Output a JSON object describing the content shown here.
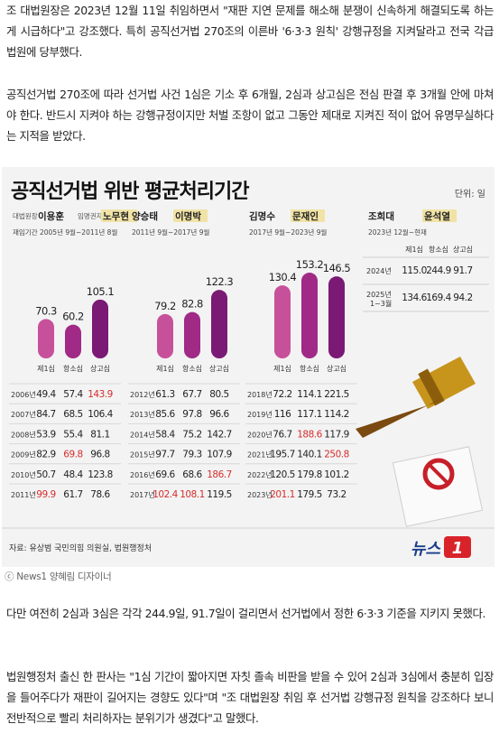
{
  "article": {
    "p1": "조 대법원장은 2023년 12월 11일 취임하면서 \"재판 지연 문제를 해소해 분쟁이 신속하게 해결되도록 하는 게 시급하다\"고 강조했다. 특히 공직선거법 270조의 이른바 '6·3·3 원칙' 강행규정을 지켜달라고 전국 각급 법원에 당부했다.",
    "p2": "공직선거법 270조에 따라 선거법 사건 1심은 기소 후 6개월, 2심과 상고심은 전심 판결 후 3개월 안에 마쳐야 한다. 반드시 지켜야 하는 강행규정이지만 처벌 조항이 없고 그동안 제대로 지켜진 적이 없어 유명무실하다는 지적을 받았다.",
    "p3": "다만 여전히 2심과 3심은 각각 244.9일, 91.7일이 걸리면서 선거법에서 정한 6·3·3 기준을 지키지 못했다.",
    "p4": "법원행정처 출신 한 판사는 \"1심 기간이 짧아지면 자칫 졸속 비판을 받을 수 있어 2심과 3심에서 충분히 입장을 들어주다가 재판이 길어지는 경향도 있다\"며 \"조 대법원장 취임 후 선거법 강행규정 원칙을 강조하다 보니 전반적으로 빨리 처리하자는 분위기가 생겼다\"고 말했다."
  },
  "credit": "ⓒ News1 양혜림 디자이너",
  "colors": {
    "bar_light": "#c7509b",
    "bar_mid": "#a02a86",
    "bar_dark": "#7a1a74",
    "red_value": "#d62d2d",
    "background": "#f3f3f3",
    "gavel": "#c7941c"
  },
  "chart_data": {
    "type": "bar",
    "title": "공직선거법 위반 평균처리기간",
    "unit_label": "단위: 일",
    "source": "자료: 유상범 국민의힘 의원실, 법원행정처",
    "logo_text": "뉴스1",
    "categories": [
      "제1심",
      "항소심",
      "상고심"
    ],
    "panels": [
      {
        "chiefs": [
          {
            "role": "대법원장",
            "name": "이용훈"
          },
          {
            "role": "임명권자",
            "name": "노무현",
            "highlight": true
          }
        ],
        "period": "재임기간 2005년 9월~2011년 8월",
        "values": [
          70.3,
          60.2,
          105.1
        ],
        "value_labels": [
          "70.3",
          "60.2",
          "105.1"
        ],
        "rows": [
          {
            "year": "2006년",
            "values": [
              "49.4",
              "57.4",
              "143.9"
            ],
            "red": [
              false,
              false,
              true
            ]
          },
          {
            "year": "2007년",
            "values": [
              "84.7",
              "68.5",
              "106.4"
            ],
            "red": [
              false,
              false,
              false
            ]
          },
          {
            "year": "2008년",
            "values": [
              "53.9",
              "55.4",
              "81.1"
            ],
            "red": [
              false,
              false,
              false
            ]
          },
          {
            "year": "2009년",
            "values": [
              "82.9",
              "69.8",
              "96.8"
            ],
            "red": [
              false,
              true,
              false
            ]
          },
          {
            "year": "2010년",
            "values": [
              "50.7",
              "48.4",
              "123.8"
            ],
            "red": [
              false,
              false,
              false
            ]
          },
          {
            "year": "2011년",
            "values": [
              "99.9",
              "61.7",
              "78.6"
            ],
            "red": [
              true,
              false,
              false
            ]
          }
        ]
      },
      {
        "chiefs": [
          {
            "role": "",
            "name": "양승태"
          },
          {
            "role": "",
            "name": "이명박",
            "highlight": true
          }
        ],
        "period": "2011년 9월~2017년 9월",
        "values": [
          79.2,
          82.8,
          122.3
        ],
        "value_labels": [
          "79.2",
          "82.8",
          "122.3"
        ],
        "rows": [
          {
            "year": "2012년",
            "values": [
              "61.3",
              "67.7",
              "80.5"
            ],
            "red": [
              false,
              false,
              false
            ]
          },
          {
            "year": "2013년",
            "values": [
              "85.6",
              "97.8",
              "96.6"
            ],
            "red": [
              false,
              false,
              false
            ]
          },
          {
            "year": "2014년",
            "values": [
              "58.4",
              "75.2",
              "142.7"
            ],
            "red": [
              false,
              false,
              false
            ]
          },
          {
            "year": "2015년",
            "values": [
              "97.7",
              "79.3",
              "107.9"
            ],
            "red": [
              false,
              false,
              false
            ]
          },
          {
            "year": "2016년",
            "values": [
              "69.6",
              "68.6",
              "186.7"
            ],
            "red": [
              false,
              false,
              true
            ]
          },
          {
            "year": "2017년",
            "values": [
              "102.4",
              "108.1",
              "119.5"
            ],
            "red": [
              true,
              true,
              false
            ]
          }
        ]
      },
      {
        "chiefs": [
          {
            "role": "",
            "name": "김명수"
          },
          {
            "role": "",
            "name": "문재인",
            "highlight": true
          }
        ],
        "period": "2017년 9월~2023년 9월",
        "values": [
          130.4,
          153.2,
          146.5
        ],
        "value_labels": [
          "130.4",
          "153.2",
          "146.5"
        ],
        "rows": [
          {
            "year": "2018년",
            "values": [
              "72.2",
              "114.1",
              "221.5"
            ],
            "red": [
              false,
              false,
              false
            ]
          },
          {
            "year": "2019년",
            "values": [
              "116",
              "117.1",
              "114.2"
            ],
            "red": [
              false,
              false,
              false
            ]
          },
          {
            "year": "2020년",
            "values": [
              "76.7",
              "188.6",
              "117.9"
            ],
            "red": [
              false,
              true,
              false
            ]
          },
          {
            "year": "2021년",
            "values": [
              "195.7",
              "140.1",
              "250.8"
            ],
            "red": [
              false,
              false,
              true
            ]
          },
          {
            "year": "2022년",
            "values": [
              "120.5",
              "179.8",
              "101.2"
            ],
            "red": [
              false,
              false,
              false
            ]
          },
          {
            "year": "2023년",
            "values": [
              "201.1",
              "179.5",
              "73.2"
            ],
            "red": [
              true,
              false,
              false
            ]
          }
        ]
      }
    ],
    "current": {
      "chiefs": [
        {
          "role": "",
          "name": "조희대"
        },
        {
          "role": "",
          "name": "윤석열",
          "highlight": true
        }
      ],
      "period": "2023년 12월~현재",
      "header": [
        "제1심",
        "항소심",
        "상고심"
      ],
      "rows": [
        {
          "label": "2024년",
          "values": [
            "115.0",
            "244.9",
            "91.7"
          ]
        },
        {
          "label": "2025년 1~3월",
          "values": [
            "134.6",
            "169.4",
            "94.2"
          ]
        }
      ]
    }
  }
}
